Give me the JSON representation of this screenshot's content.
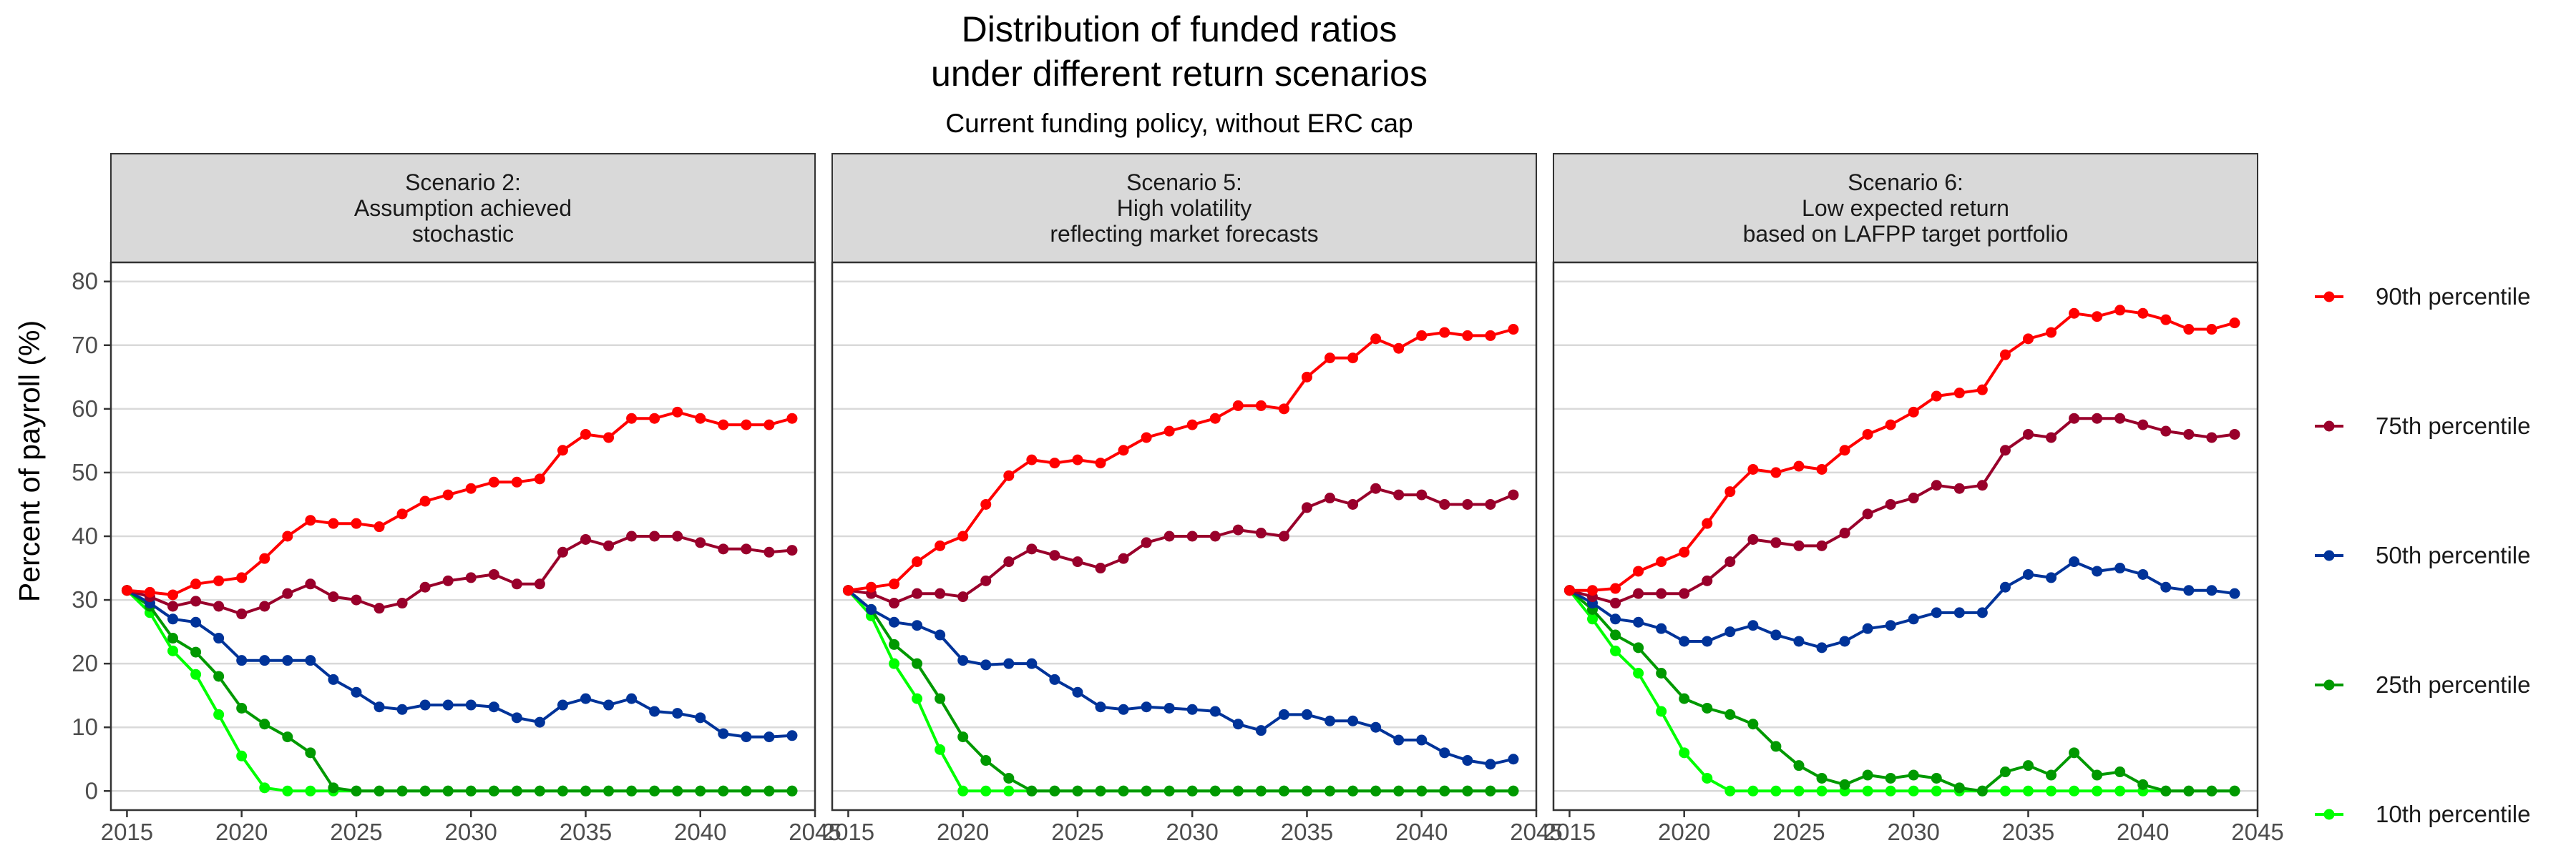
{
  "chart_data": {
    "type": "line",
    "title": "Distribution of funded ratios\nunder different return scenarios",
    "subtitle": "Current funding policy, without ERC cap",
    "ylabel": "Percent of payroll (%)",
    "xlabel": "",
    "xlim": [
      2014.3,
      2045
    ],
    "ylim": [
      -3,
      83
    ],
    "x_ticks": [
      2015,
      2020,
      2025,
      2030,
      2035,
      2040,
      2045
    ],
    "y_ticks": [
      0,
      10,
      20,
      30,
      40,
      50,
      60,
      70,
      80
    ],
    "grid": true,
    "legend_position": "right",
    "colors": {
      "90th percentile": "#ff0000",
      "75th percentile": "#99002b",
      "50th percentile": "#003399",
      "25th percentile": "#009900",
      "10th percentile": "#00ff00"
    },
    "x": [
      2015,
      2016,
      2017,
      2018,
      2019,
      2020,
      2021,
      2022,
      2023,
      2024,
      2025,
      2026,
      2027,
      2028,
      2029,
      2030,
      2031,
      2032,
      2033,
      2034,
      2035,
      2036,
      2037,
      2038,
      2039,
      2040,
      2041,
      2042,
      2043,
      2044
    ],
    "panels": [
      {
        "title": "Scenario 2:\nAssumption achieved\nstochastic",
        "series": [
          {
            "name": "90th percentile",
            "values": [
              31.5,
              31.2,
              30.8,
              32.5,
              33,
              33.5,
              36.5,
              40,
              42.5,
              42,
              42,
              41.5,
              43.5,
              45.5,
              46.5,
              47.5,
              48.5,
              48.5,
              49,
              53.5,
              56,
              55.5,
              58.5,
              58.5,
              59.5,
              58.5,
              57.5,
              57.5,
              57.5,
              58.5
            ]
          },
          {
            "name": "75th percentile",
            "values": [
              31.5,
              30.5,
              29,
              29.8,
              29,
              27.8,
              29,
              31,
              32.5,
              30.5,
              30,
              28.7,
              29.5,
              32,
              33,
              33.5,
              34,
              32.5,
              32.5,
              37.5,
              39.5,
              38.5,
              40,
              40,
              40,
              39,
              38,
              38,
              37.5,
              37.8
            ]
          },
          {
            "name": "50th percentile",
            "values": [
              31.5,
              29.5,
              27,
              26.5,
              24,
              20.5,
              20.5,
              20.5,
              20.5,
              17.5,
              15.5,
              13.2,
              12.8,
              13.5,
              13.5,
              13.5,
              13.2,
              11.5,
              10.8,
              13.5,
              14.5,
              13.5,
              14.5,
              12.5,
              12.2,
              11.5,
              9,
              8.5,
              8.5,
              8.7
            ]
          },
          {
            "name": "25th percentile",
            "values": [
              31.5,
              29,
              24,
              21.8,
              18,
              13,
              10.5,
              8.5,
              6,
              0.5,
              0,
              0,
              0,
              0,
              0,
              0,
              0,
              0,
              0,
              0,
              0,
              0,
              0,
              0,
              0,
              0,
              0,
              0,
              0,
              0
            ]
          },
          {
            "name": "10th percentile",
            "values": [
              31.5,
              28,
              22,
              18.3,
              12,
              5.5,
              0.5,
              0,
              0,
              0,
              0,
              0,
              0,
              0,
              0,
              0,
              0,
              0,
              0,
              0,
              0,
              0,
              0,
              0,
              0,
              0,
              0,
              0,
              0,
              0
            ]
          }
        ]
      },
      {
        "title": "Scenario 5:\nHigh volatility\nreflecting market forecasts",
        "series": [
          {
            "name": "90th percentile",
            "values": [
              31.5,
              32,
              32.5,
              36,
              38.5,
              40,
              45,
              49.5,
              52,
              51.5,
              52,
              51.5,
              53.5,
              55.5,
              56.5,
              57.5,
              58.5,
              60.5,
              60.5,
              60,
              65,
              68,
              68,
              71,
              69.5,
              71.5,
              72,
              71.5,
              71.5,
              72.5
            ]
          },
          {
            "name": "75th percentile",
            "values": [
              31.5,
              31,
              29.5,
              31,
              31,
              30.5,
              33,
              36,
              38,
              37,
              36,
              35,
              36.5,
              39,
              40,
              40,
              40,
              41,
              40.5,
              40,
              44.5,
              46,
              45,
              47.5,
              46.5,
              46.5,
              45,
              45,
              45,
              46.5
            ]
          },
          {
            "name": "50th percentile",
            "values": [
              31.5,
              28.5,
              26.5,
              26,
              24.5,
              20.5,
              19.8,
              20,
              20,
              17.5,
              15.5,
              13.2,
              12.8,
              13.2,
              13,
              12.8,
              12.5,
              10.5,
              9.5,
              12,
              12,
              11,
              11,
              10,
              8,
              8,
              6,
              4.8,
              4.2,
              5
            ]
          },
          {
            "name": "25th percentile",
            "values": [
              31.5,
              28.5,
              23,
              20,
              14.5,
              8.5,
              4.8,
              2,
              0,
              0,
              0,
              0,
              0,
              0,
              0,
              0,
              0,
              0,
              0,
              0,
              0,
              0,
              0,
              0,
              0,
              0,
              0,
              0,
              0,
              0
            ]
          },
          {
            "name": "10th percentile",
            "values": [
              31.5,
              27.5,
              20,
              14.5,
              6.5,
              0,
              0,
              0,
              0,
              0,
              0,
              0,
              0,
              0,
              0,
              0,
              0,
              0,
              0,
              0,
              0,
              0,
              0,
              0,
              0,
              0,
              0,
              0,
              0,
              0
            ]
          }
        ]
      },
      {
        "title": "Scenario 6:\nLow expected return\nbased on LAFPP target portfolio",
        "series": [
          {
            "name": "90th percentile",
            "values": [
              31.5,
              31.5,
              31.8,
              34.5,
              36,
              37.5,
              42,
              47,
              50.5,
              50,
              51,
              50.5,
              53.5,
              56,
              57.5,
              59.5,
              62,
              62.5,
              63,
              68.5,
              71,
              72,
              75,
              74.5,
              75.5,
              75,
              74,
              72.5,
              72.5,
              73.5
            ]
          },
          {
            "name": "75th percentile",
            "values": [
              31.5,
              30.5,
              29.5,
              31,
              31,
              31,
              33,
              36,
              39.5,
              39,
              38.5,
              38.5,
              40.5,
              43.5,
              45,
              46,
              48,
              47.5,
              48,
              53.5,
              56,
              55.5,
              58.5,
              58.5,
              58.5,
              57.5,
              56.5,
              56,
              55.5,
              56
            ]
          },
          {
            "name": "50th percentile",
            "values": [
              31.5,
              29.5,
              27,
              26.5,
              25.5,
              23.5,
              23.5,
              25,
              26,
              24.5,
              23.5,
              22.5,
              23.5,
              25.5,
              26,
              27,
              28,
              28,
              28,
              32,
              34,
              33.5,
              36,
              34.5,
              35,
              34,
              32,
              31.5,
              31.5,
              31
            ]
          },
          {
            "name": "25th percentile",
            "values": [
              31.5,
              28.5,
              24.5,
              22.5,
              18.5,
              14.5,
              13,
              12,
              10.5,
              7,
              4,
              2,
              1,
              2.5,
              2,
              2.5,
              2,
              0.5,
              0,
              3,
              4,
              2.5,
              6,
              2.5,
              3,
              1,
              0,
              0,
              0,
              0
            ]
          },
          {
            "name": "10th percentile",
            "values": [
              31.5,
              27,
              22,
              18.5,
              12.5,
              6,
              2,
              0,
              0,
              0,
              0,
              0,
              0,
              0,
              0,
              0,
              0,
              0,
              0,
              0,
              0,
              0,
              0,
              0,
              0,
              0,
              0,
              0,
              0,
              0
            ]
          }
        ]
      }
    ]
  }
}
